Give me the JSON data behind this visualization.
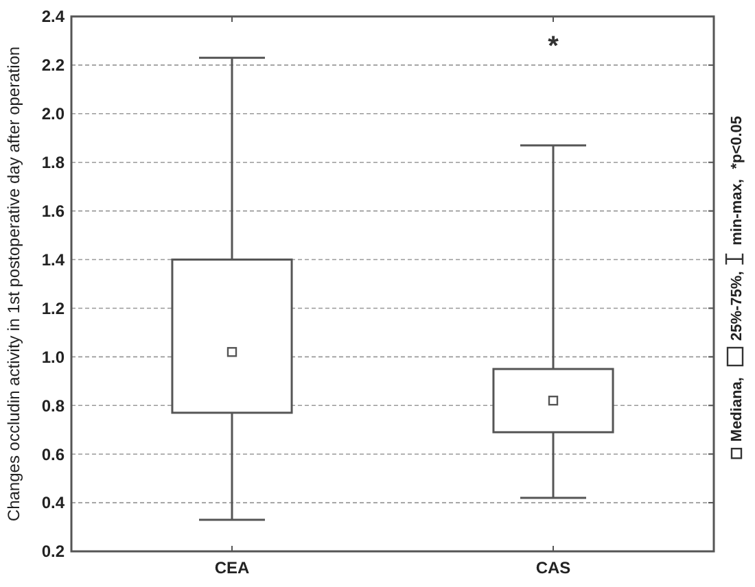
{
  "chart_data": {
    "type": "box",
    "ylabel": "Changes occludin activity in 1st postoperative day after operation",
    "categories": [
      "CEA",
      "CAS"
    ],
    "boxes": [
      {
        "low": 0.33,
        "q1": 0.77,
        "median": 1.02,
        "q3": 1.4,
        "high": 2.23
      },
      {
        "low": 0.42,
        "q1": 0.69,
        "median": 0.82,
        "q3": 0.95,
        "high": 1.87
      }
    ],
    "ylim": [
      0.2,
      2.4
    ],
    "yticks": [
      {
        "value": 0.2,
        "label": "0.2"
      },
      {
        "value": 0.4,
        "label": "0.4"
      },
      {
        "value": 0.6,
        "label": "0.6"
      },
      {
        "value": 0.8,
        "label": "0.8"
      },
      {
        "value": 1.0,
        "label": "1.0"
      },
      {
        "value": 1.2,
        "label": "1.2"
      },
      {
        "value": 1.4,
        "label": "1.4"
      },
      {
        "value": 1.6,
        "label": "1.6"
      },
      {
        "value": 1.8,
        "label": "1.8"
      },
      {
        "value": 2.0,
        "label": "2.0"
      },
      {
        "value": 2.2,
        "label": "2.2"
      },
      {
        "value": 2.4,
        "label": "2.4"
      }
    ],
    "grid": "y",
    "annotations": [
      "*",
      "Mediana,",
      "25%-75%,",
      "min-max,",
      "*p<0.05"
    ]
  }
}
